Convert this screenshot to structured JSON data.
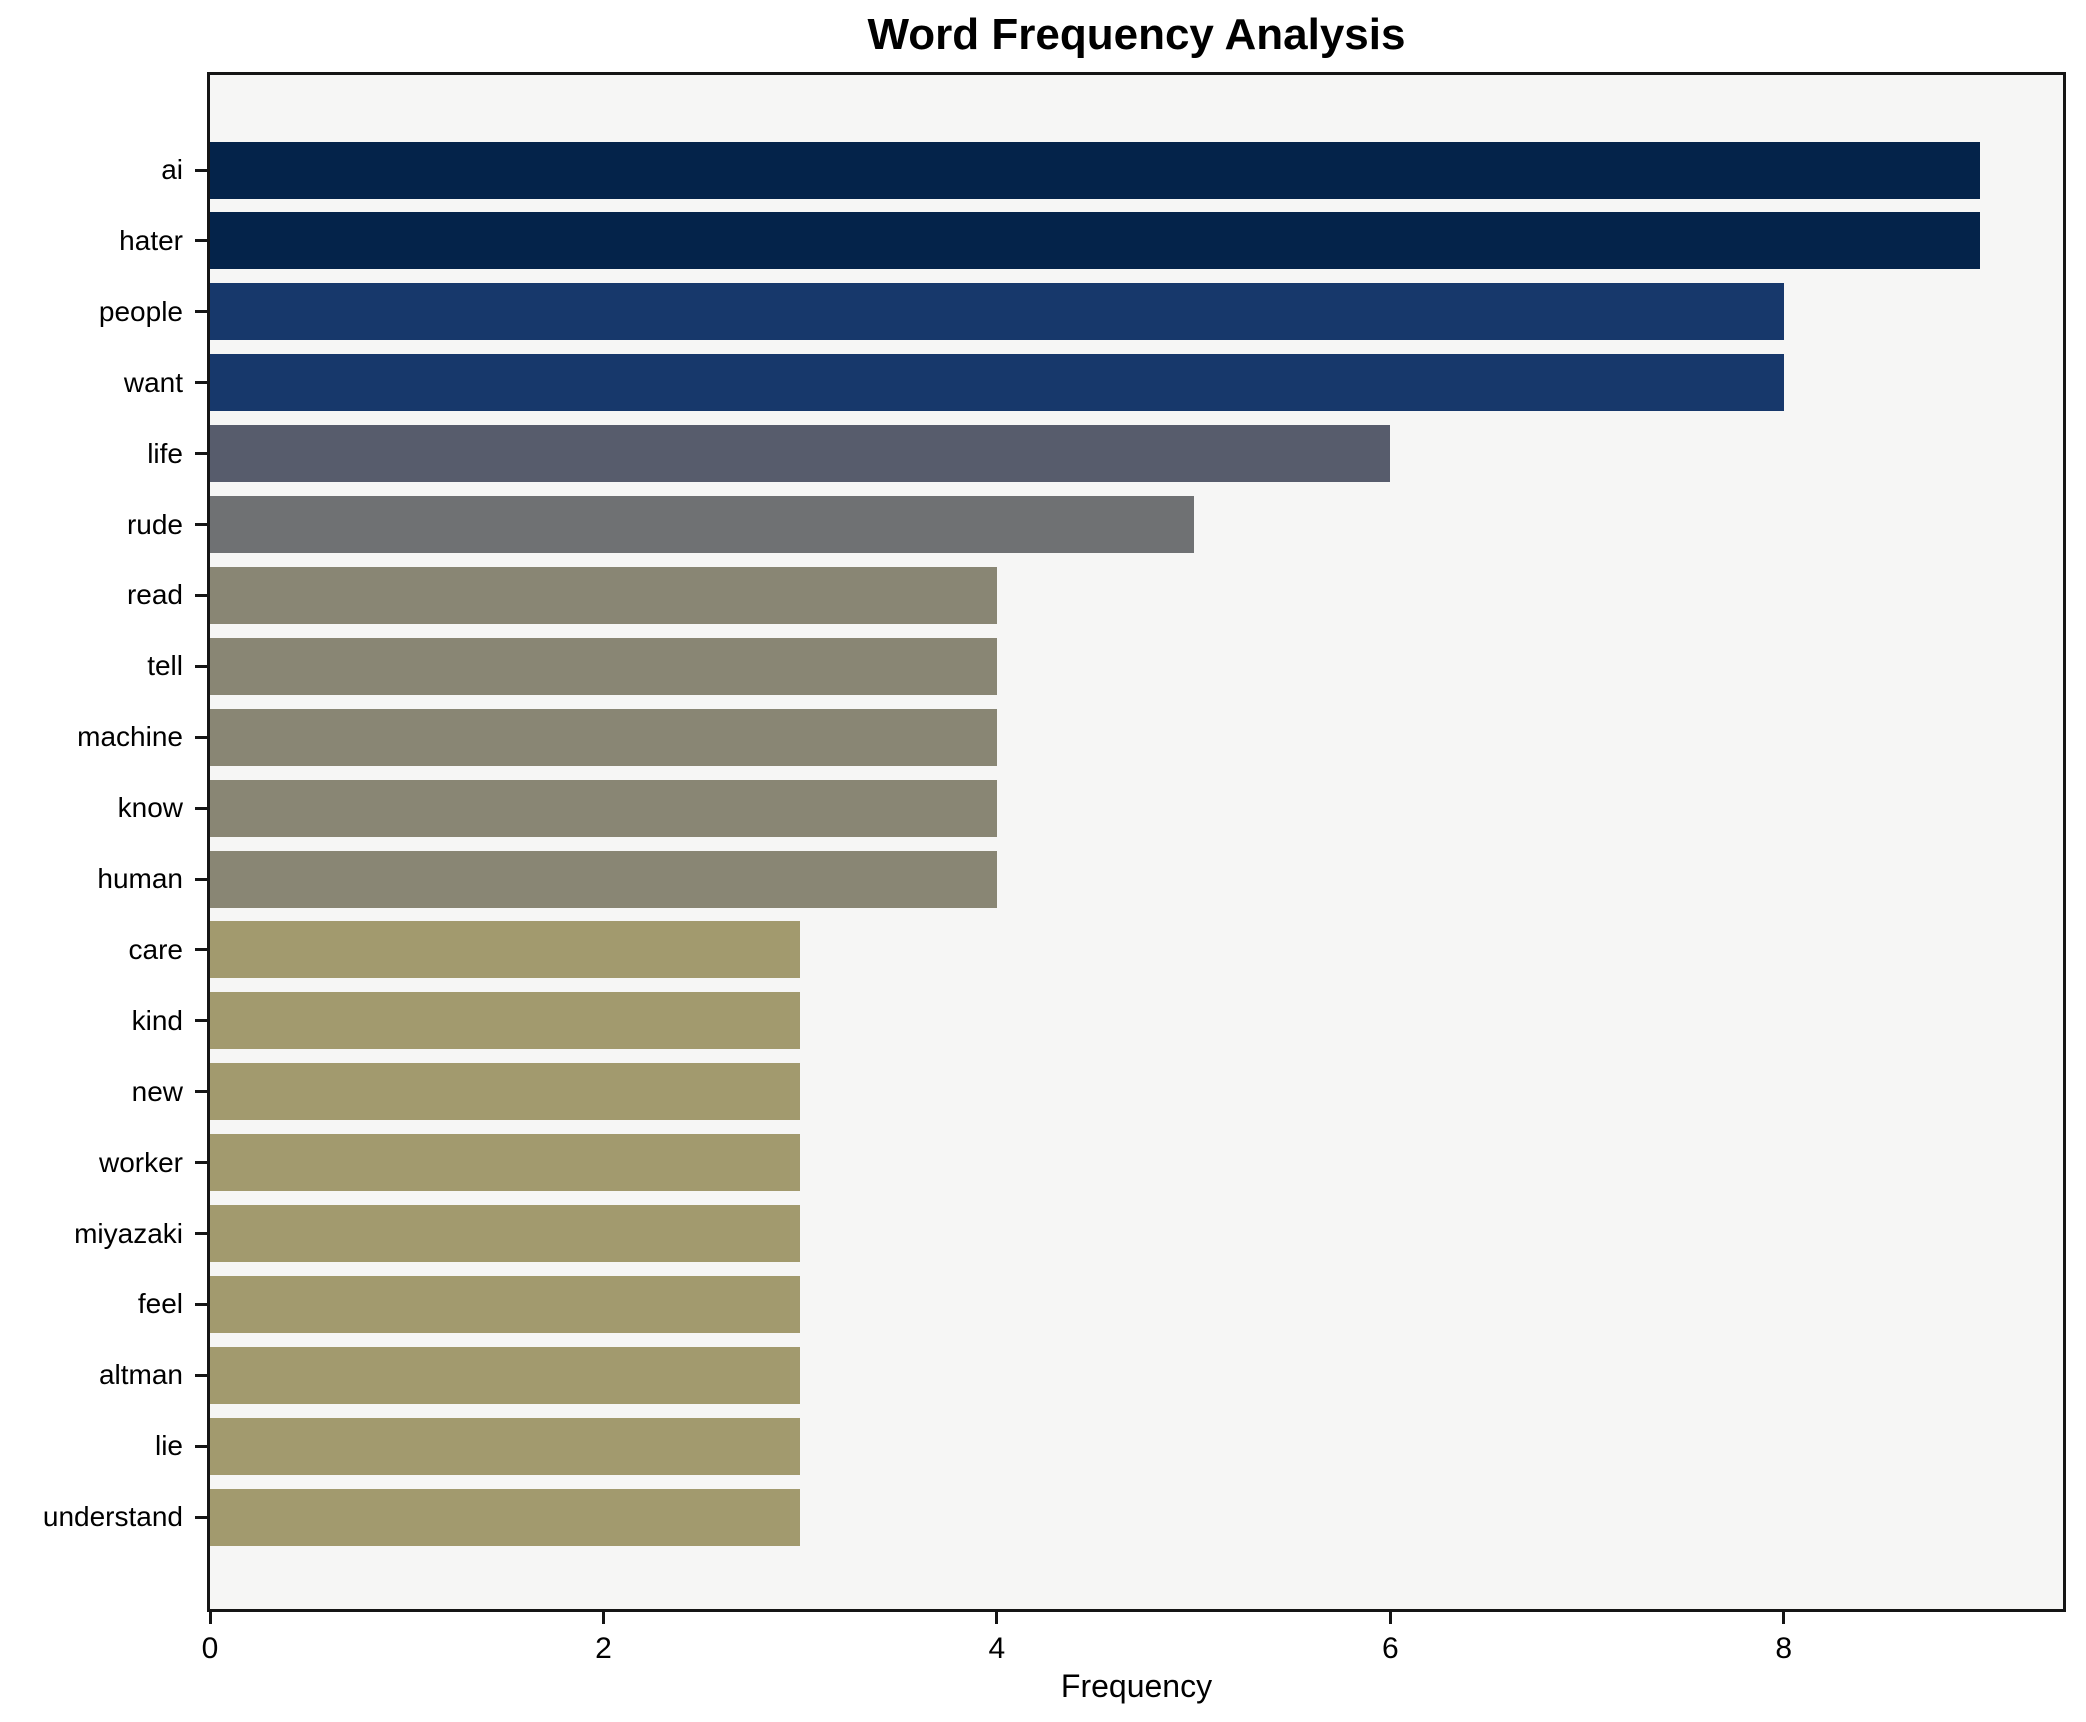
{
  "chart_data": {
    "type": "bar",
    "orientation": "horizontal",
    "title": "Word Frequency Analysis",
    "xlabel": "Frequency",
    "ylabel": "",
    "categories": [
      "ai",
      "hater",
      "people",
      "want",
      "life",
      "rude",
      "read",
      "tell",
      "machine",
      "know",
      "human",
      "care",
      "kind",
      "new",
      "worker",
      "miyazaki",
      "feel",
      "altman",
      "lie",
      "understand"
    ],
    "values": [
      9,
      9,
      8,
      8,
      6,
      5,
      4,
      4,
      4,
      4,
      4,
      3,
      3,
      3,
      3,
      3,
      3,
      3,
      3,
      3
    ],
    "bar_colors": [
      "#04234a",
      "#04234a",
      "#17386b",
      "#17386b",
      "#575c6c",
      "#6f7173",
      "#898674",
      "#898674",
      "#898674",
      "#898674",
      "#898674",
      "#a29a6e",
      "#a29a6e",
      "#a29a6e",
      "#a29a6e",
      "#a29a6e",
      "#a29a6e",
      "#a29a6e",
      "#a29a6e",
      "#a29a6e"
    ],
    "x_ticks": [
      0,
      2,
      4,
      6,
      8
    ],
    "xlim": [
      0,
      9.45
    ],
    "grid": false,
    "legend": null,
    "plot_background": "#f6f6f5",
    "figure_background": "#ffffff",
    "spine_color": "#151515"
  }
}
